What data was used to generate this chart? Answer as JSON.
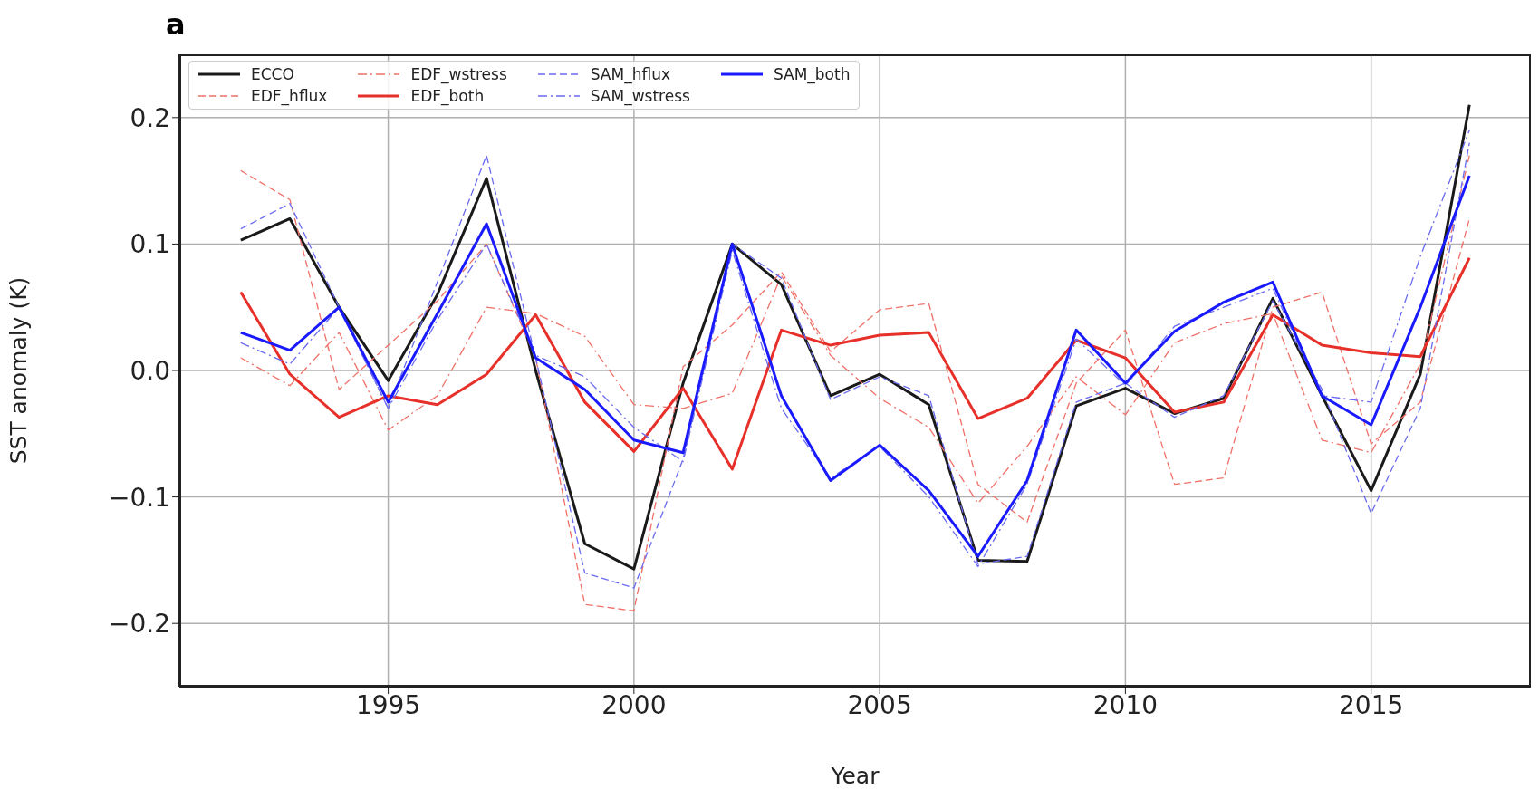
{
  "chart_data": {
    "type": "line",
    "title": "a",
    "xlabel": "Year",
    "ylabel": "SST anomaly (K)",
    "x": [
      1992,
      1993,
      1994,
      1995,
      1996,
      1997,
      1998,
      1999,
      2000,
      2001,
      2002,
      2003,
      2004,
      2005,
      2006,
      2007,
      2008,
      2009,
      2010,
      2011,
      2012,
      2013,
      2014,
      2015,
      2016,
      2017
    ],
    "xlim": [
      1990.75,
      2018.25
    ],
    "xticks": [
      1995,
      2000,
      2005,
      2010,
      2015
    ],
    "ylim": [
      -0.25,
      0.25
    ],
    "yticks": [
      {
        "value": -0.2,
        "label": "−0.2"
      },
      {
        "value": -0.1,
        "label": "−0.1"
      },
      {
        "value": 0,
        "label": "0.0"
      },
      {
        "value": 0.1,
        "label": "0.1"
      },
      {
        "value": 0.2,
        "label": "0.2"
      }
    ],
    "grid": true,
    "legend": "top left",
    "marker": "none",
    "series": [
      {
        "name": "ECCO",
        "color": "#1a1a1a",
        "line_style": "solid",
        "values": [
          0.103,
          0.12,
          0.05,
          -0.008,
          0.06,
          0.152,
          0.0,
          -0.137,
          -0.157,
          -0.01,
          0.1,
          0.068,
          -0.02,
          -0.003,
          -0.027,
          -0.15,
          -0.151,
          -0.028,
          -0.014,
          -0.034,
          -0.022,
          0.057,
          -0.02,
          -0.095,
          -0.003,
          0.21
        ]
      },
      {
        "name": "EDF_hflux",
        "color": "#f07068",
        "line_style": "dashed",
        "values": [
          0.158,
          0.135,
          -0.015,
          0.02,
          0.055,
          0.1,
          0.01,
          -0.185,
          -0.19,
          0.003,
          0.036,
          0.078,
          0.015,
          0.048,
          0.053,
          -0.09,
          -0.12,
          -0.01,
          0.032,
          -0.09,
          -0.085,
          0.05,
          0.062,
          -0.058,
          -0.025,
          0.12
        ]
      },
      {
        "name": "EDF_wstress",
        "color": "#f07068",
        "line_style": "dashdot",
        "values": [
          0.01,
          -0.012,
          0.03,
          -0.047,
          -0.02,
          0.05,
          0.045,
          0.027,
          -0.027,
          -0.03,
          -0.018,
          0.075,
          0.012,
          -0.022,
          -0.045,
          -0.105,
          -0.06,
          -0.005,
          -0.035,
          0.022,
          0.037,
          0.045,
          -0.055,
          -0.065,
          0.005,
          0.17
        ]
      },
      {
        "name": "EDF_both",
        "color": "#e8302a",
        "line_style": "solid",
        "values": [
          0.062,
          -0.003,
          -0.037,
          -0.02,
          -0.027,
          -0.003,
          0.044,
          -0.025,
          -0.064,
          -0.014,
          -0.078,
          0.032,
          0.02,
          0.028,
          0.03,
          -0.038,
          -0.022,
          0.024,
          0.01,
          -0.033,
          -0.025,
          0.044,
          0.02,
          0.014,
          0.011,
          0.089
        ]
      },
      {
        "name": "SAM_hflux",
        "color": "#6a6af0",
        "line_style": "dashed",
        "values": [
          0.112,
          0.132,
          0.05,
          -0.03,
          0.07,
          0.17,
          0.01,
          -0.16,
          -0.172,
          -0.07,
          0.1,
          0.073,
          -0.023,
          -0.005,
          -0.02,
          -0.153,
          -0.147,
          -0.025,
          -0.01,
          -0.037,
          -0.02,
          0.055,
          -0.015,
          -0.113,
          -0.03,
          0.18
        ]
      },
      {
        "name": "SAM_wstress",
        "color": "#6a6af0",
        "line_style": "dashdot",
        "values": [
          0.022,
          0.005,
          0.05,
          -0.03,
          0.04,
          0.1,
          0.012,
          -0.005,
          -0.045,
          -0.072,
          0.095,
          -0.03,
          -0.085,
          -0.06,
          -0.1,
          -0.155,
          -0.09,
          0.025,
          -0.012,
          0.035,
          0.05,
          0.065,
          -0.02,
          -0.025,
          0.09,
          0.19
        ]
      },
      {
        "name": "SAM_both",
        "color": "#1a1aff",
        "line_style": "solid",
        "values": [
          0.03,
          0.016,
          0.05,
          -0.025,
          0.045,
          0.116,
          0.01,
          -0.015,
          -0.055,
          -0.065,
          0.1,
          -0.02,
          -0.087,
          -0.059,
          -0.095,
          -0.147,
          -0.087,
          0.032,
          -0.01,
          0.031,
          0.054,
          0.07,
          -0.02,
          -0.043,
          0.05,
          0.154
        ]
      }
    ]
  }
}
